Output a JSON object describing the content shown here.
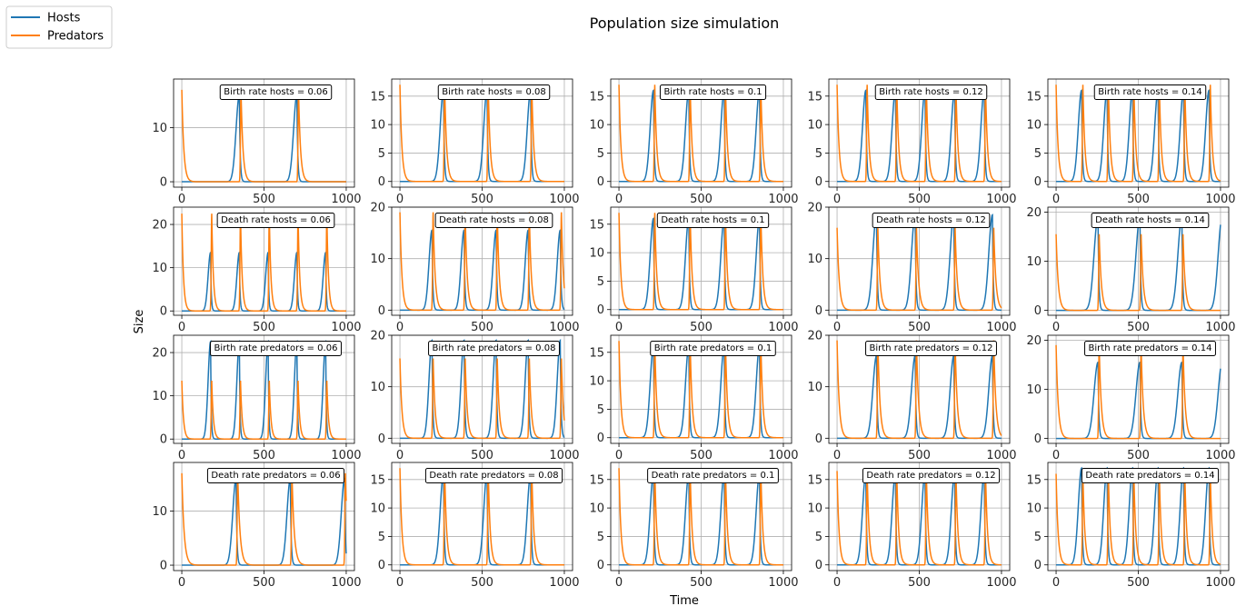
{
  "chart_data": {
    "type": "line",
    "title": "Population size simulation",
    "xlabel": "Time",
    "ylabel": "Size",
    "legend": {
      "placement": "top-left",
      "entries": [
        {
          "name": "Hosts",
          "color": "#1f77b4"
        },
        {
          "name": "Predators",
          "color": "#ff7f0e"
        }
      ]
    },
    "grid": true,
    "xlim": [
      -50,
      1050
    ],
    "xticks": [
      0,
      500,
      1000
    ],
    "series_colors": {
      "hosts": "#1f77b4",
      "predators": "#ff7f0e"
    },
    "subplots": [
      {
        "label": "Birth rate hosts = 0.06",
        "ylim": [
          -1,
          19
        ],
        "yticks": [
          0,
          10
        ],
        "hosts": {
          "peaks": [
            350,
            700
          ],
          "height": 16,
          "rise": 20,
          "decay": 5
        },
        "predators": {
          "peaks": [
            0,
            360,
            710
          ],
          "height": 17,
          "rise": 3,
          "decay": 12
        }
      },
      {
        "label": "Birth rate hosts = 0.08",
        "ylim": [
          -1,
          18
        ],
        "yticks": [
          0,
          5,
          10,
          15
        ],
        "hosts": {
          "peaks": [
            265,
            530,
            795
          ],
          "height": 16,
          "rise": 20,
          "decay": 5
        },
        "predators": {
          "peaks": [
            0,
            272,
            537,
            802
          ],
          "height": 17,
          "rise": 3,
          "decay": 12
        }
      },
      {
        "label": "Birth rate hosts = 0.1",
        "ylim": [
          -1,
          18
        ],
        "yticks": [
          0,
          5,
          10,
          15
        ],
        "hosts": {
          "peaks": [
            210,
            425,
            640,
            855
          ],
          "height": 16,
          "rise": 20,
          "decay": 5
        },
        "predators": {
          "peaks": [
            0,
            218,
            433,
            648,
            863
          ],
          "height": 17,
          "rise": 3,
          "decay": 12
        }
      },
      {
        "label": "Birth rate hosts = 0.12",
        "ylim": [
          -1,
          18
        ],
        "yticks": [
          0,
          5,
          10,
          15
        ],
        "hosts": {
          "peaks": [
            175,
            355,
            535,
            715,
            895
          ],
          "height": 16,
          "rise": 20,
          "decay": 5
        },
        "predators": {
          "peaks": [
            0,
            183,
            363,
            543,
            723,
            903
          ],
          "height": 17,
          "rise": 3,
          "decay": 12
        }
      },
      {
        "label": "Birth rate hosts = 0.14",
        "ylim": [
          -1,
          18
        ],
        "yticks": [
          0,
          5,
          10,
          15
        ],
        "hosts": {
          "peaks": [
            155,
            310,
            465,
            620,
            775,
            930
          ],
          "height": 16,
          "rise": 20,
          "decay": 5
        },
        "predators": {
          "peaks": [
            0,
            163,
            318,
            473,
            628,
            783,
            938
          ],
          "height": 17,
          "rise": 3,
          "decay": 12
        }
      },
      {
        "label": "Death rate hosts = 0.06",
        "ylim": [
          -1,
          24
        ],
        "yticks": [
          0,
          10,
          20
        ],
        "hosts": {
          "peaks": [
            175,
            350,
            525,
            700,
            875
          ],
          "height": 13.5,
          "rise": 15,
          "decay": 4
        },
        "predators": {
          "peaks": [
            0,
            182,
            357,
            532,
            707,
            882
          ],
          "height": 22.5,
          "rise": 3,
          "decay": 10
        }
      },
      {
        "label": "Death rate hosts = 0.08",
        "ylim": [
          -1,
          20
        ],
        "yticks": [
          0,
          10,
          20
        ],
        "hosts": {
          "peaks": [
            195,
            390,
            585,
            780,
            975
          ],
          "height": 15.5,
          "rise": 18,
          "decay": 5
        },
        "predators": {
          "peaks": [
            0,
            202,
            397,
            592,
            787,
            982
          ],
          "height": 19,
          "rise": 3,
          "decay": 12
        }
      },
      {
        "label": "Death rate hosts = 0.1",
        "ylim": [
          -1,
          18
        ],
        "yticks": [
          0,
          5,
          10,
          15
        ],
        "hosts": {
          "peaks": [
            210,
            425,
            640,
            855
          ],
          "height": 16,
          "rise": 20,
          "decay": 5
        },
        "predators": {
          "peaks": [
            0,
            218,
            433,
            648,
            863
          ],
          "height": 17,
          "rise": 3,
          "decay": 12
        }
      },
      {
        "label": "Death rate hosts = 0.12",
        "ylim": [
          -1,
          20
        ],
        "yticks": [
          0,
          10,
          20
        ],
        "hosts": {
          "peaks": [
            240,
            475,
            710,
            945
          ],
          "height": 18.5,
          "rise": 22,
          "decay": 5
        },
        "predators": {
          "peaks": [
            0,
            248,
            483,
            718,
            953
          ],
          "height": 16,
          "rise": 3,
          "decay": 13
        }
      },
      {
        "label": "Death rate hosts = 0.14",
        "ylim": [
          -1,
          21
        ],
        "yticks": [
          0,
          10,
          20
        ],
        "hosts": {
          "peaks": [
            255,
            510,
            765,
            1010
          ],
          "height": 19,
          "rise": 24,
          "decay": 5
        },
        "predators": {
          "peaks": [
            0,
            262,
            517,
            772
          ],
          "height": 15.5,
          "rise": 3,
          "decay": 13
        }
      },
      {
        "label": "Birth rate predators = 0.06",
        "ylim": [
          -1,
          24
        ],
        "yticks": [
          0,
          10,
          20
        ],
        "hosts": {
          "peaks": [
            175,
            350,
            525,
            700,
            875
          ],
          "height": 22.5,
          "rise": 15,
          "decay": 4
        },
        "predators": {
          "peaks": [
            0,
            182,
            357,
            532,
            707,
            882
          ],
          "height": 13.5,
          "rise": 3,
          "decay": 10
        }
      },
      {
        "label": "Birth rate predators = 0.08",
        "ylim": [
          -1,
          20
        ],
        "yticks": [
          0,
          10,
          20
        ],
        "hosts": {
          "peaks": [
            195,
            390,
            585,
            780,
            975
          ],
          "height": 19,
          "rise": 18,
          "decay": 5
        },
        "predators": {
          "peaks": [
            0,
            202,
            397,
            592,
            787,
            982
          ],
          "height": 15.5,
          "rise": 3,
          "decay": 12
        }
      },
      {
        "label": "Birth rate predators = 0.1",
        "ylim": [
          -1,
          18
        ],
        "yticks": [
          0,
          5,
          10,
          15
        ],
        "hosts": {
          "peaks": [
            210,
            425,
            640,
            855
          ],
          "height": 16,
          "rise": 20,
          "decay": 5
        },
        "predators": {
          "peaks": [
            0,
            218,
            433,
            648,
            863
          ],
          "height": 17,
          "rise": 3,
          "decay": 12
        }
      },
      {
        "label": "Birth rate predators = 0.12",
        "ylim": [
          -1,
          20
        ],
        "yticks": [
          0,
          10,
          20
        ],
        "hosts": {
          "peaks": [
            240,
            475,
            710,
            945
          ],
          "height": 16,
          "rise": 22,
          "decay": 5
        },
        "predators": {
          "peaks": [
            0,
            248,
            483,
            718,
            953
          ],
          "height": 19,
          "rise": 3,
          "decay": 13
        }
      },
      {
        "label": "Birth rate predators = 0.14",
        "ylim": [
          -1,
          21
        ],
        "yticks": [
          0,
          10,
          20
        ],
        "hosts": {
          "peaks": [
            255,
            510,
            765,
            1010
          ],
          "height": 15.5,
          "rise": 24,
          "decay": 5
        },
        "predators": {
          "peaks": [
            0,
            262,
            517,
            772
          ],
          "height": 19,
          "rise": 3,
          "decay": 13
        }
      },
      {
        "label": "Death rate predators = 0.06",
        "ylim": [
          -1,
          19
        ],
        "yticks": [
          0,
          10
        ],
        "hosts": {
          "peaks": [
            330,
            660,
            990
          ],
          "height": 16,
          "rise": 20,
          "decay": 5
        },
        "predators": {
          "peaks": [
            0,
            340,
            670,
            995
          ],
          "height": 17,
          "rise": 3,
          "decay": 14
        }
      },
      {
        "label": "Death rate predators = 0.08",
        "ylim": [
          -1,
          18
        ],
        "yticks": [
          0,
          5,
          10,
          15
        ],
        "hosts": {
          "peaks": [
            265,
            530,
            795
          ],
          "height": 16,
          "rise": 20,
          "decay": 5
        },
        "predators": {
          "peaks": [
            0,
            272,
            537,
            802
          ],
          "height": 17,
          "rise": 3,
          "decay": 12
        }
      },
      {
        "label": "Death rate predators = 0.1",
        "ylim": [
          -1,
          18
        ],
        "yticks": [
          0,
          5,
          10,
          15
        ],
        "hosts": {
          "peaks": [
            210,
            425,
            640,
            855
          ],
          "height": 16,
          "rise": 20,
          "decay": 5
        },
        "predators": {
          "peaks": [
            0,
            218,
            433,
            648,
            863
          ],
          "height": 17,
          "rise": 3,
          "decay": 12
        }
      },
      {
        "label": "Death rate predators = 0.12",
        "ylim": [
          -1,
          18
        ],
        "yticks": [
          0,
          5,
          10,
          15
        ],
        "hosts": {
          "peaks": [
            175,
            355,
            535,
            715,
            895
          ],
          "height": 16,
          "rise": 20,
          "decay": 5
        },
        "predators": {
          "peaks": [
            0,
            183,
            363,
            543,
            723,
            903
          ],
          "height": 16.5,
          "rise": 3,
          "decay": 12
        }
      },
      {
        "label": "Death rate predators = 0.14",
        "ylim": [
          -1,
          18
        ],
        "yticks": [
          0,
          5,
          10,
          15
        ],
        "hosts": {
          "peaks": [
            155,
            310,
            465,
            620,
            775,
            930
          ],
          "height": 17,
          "rise": 20,
          "decay": 5
        },
        "predators": {
          "peaks": [
            0,
            163,
            318,
            473,
            628,
            783,
            938
          ],
          "height": 16,
          "rise": 3,
          "decay": 12
        }
      }
    ]
  }
}
